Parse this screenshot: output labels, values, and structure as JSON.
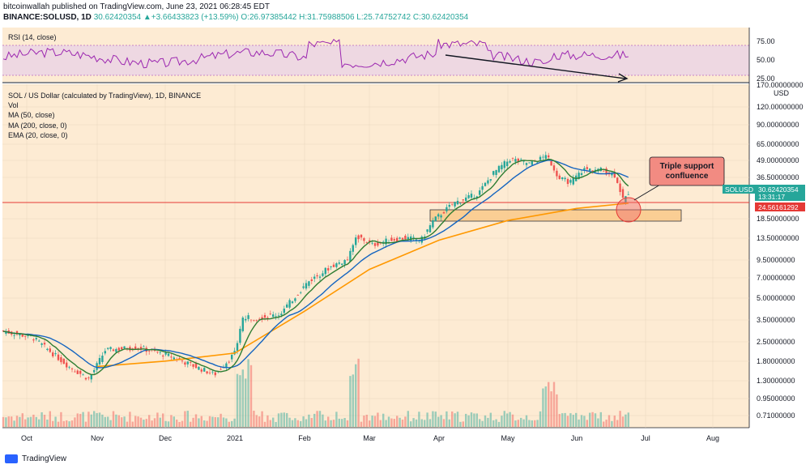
{
  "header": {
    "publisher_line": "bitcoinwallah published on TradingView.com, June 23, 2021 06:28:45 EDT",
    "symbol": "BINANCE:SOLUSD, 1D",
    "price_change": "30.62420354 ▲+3.66433823 (+13.59%)",
    "ohlc": "O:26.97385442 H:31.75988506 L:25.74752742 C:30.62420354"
  },
  "rsi_panel": {
    "title": "RSI (14, close)",
    "ticks": [
      "75.00",
      "50.00",
      "25.00"
    ],
    "band": [
      30,
      70
    ]
  },
  "legend": {
    "title": "SOL / US Dollar (calculated by TradingView), 1D, BINANCE",
    "items": [
      "Vol",
      "MA (50, close)",
      "MA (200, close, 0)",
      "EMA (20, close, 0)"
    ]
  },
  "price_axis": {
    "currency": "USD",
    "ticks": [
      "170.00000000",
      "120.00000000",
      "90.00000000",
      "65.00000000",
      "49.00000000",
      "36.50000000",
      "18.50000000",
      "13.50000000",
      "9.50000000",
      "7.00000000",
      "5.00000000",
      "3.50000000",
      "2.50000000",
      "1.80000000",
      "1.30000000",
      "0.95000000",
      "0.71000000"
    ],
    "price_label": "SOLUSD",
    "price_value": "30.62420354",
    "countdown": "13:31:17",
    "support_value": "24.56161292"
  },
  "time_axis": [
    "Oct",
    "Nov",
    "Dec",
    "2021",
    "Feb",
    "Mar",
    "Apr",
    "May",
    "Jun",
    "Jul",
    "Aug"
  ],
  "annotation": {
    "text_line1": "Triple support",
    "text_line2": "confluence"
  },
  "footer": {
    "brand": "TradingView"
  },
  "colors": {
    "up": "#26a69a",
    "down": "#ef5350",
    "ma50": "#1565c0",
    "ma200": "#ff9800",
    "ema20": "#2e7d32",
    "rsi": "#9c27b0",
    "support_line": "#e53935",
    "bg": "#fdebd3"
  },
  "chart_data": {
    "type": "candlestick",
    "scale": "log",
    "ylim": [
      0.6,
      170
    ],
    "x": [
      "2020-10",
      "2020-11",
      "2020-12",
      "2021-01",
      "2021-02",
      "2021-03",
      "2021-04",
      "2021-05",
      "2021-06"
    ],
    "close_approx": [
      2.9,
      1.7,
      1.9,
      3.0,
      12.0,
      15.0,
      30.0,
      42.0,
      30.6
    ],
    "ma200_approx": [
      null,
      1.6,
      1.75,
      2.0,
      4.0,
      8.0,
      13.0,
      18.0,
      22.0
    ],
    "support_zone": [
      17.5,
      20.5
    ],
    "support_line": 24.56161292,
    "last_close": 30.62420354
  }
}
